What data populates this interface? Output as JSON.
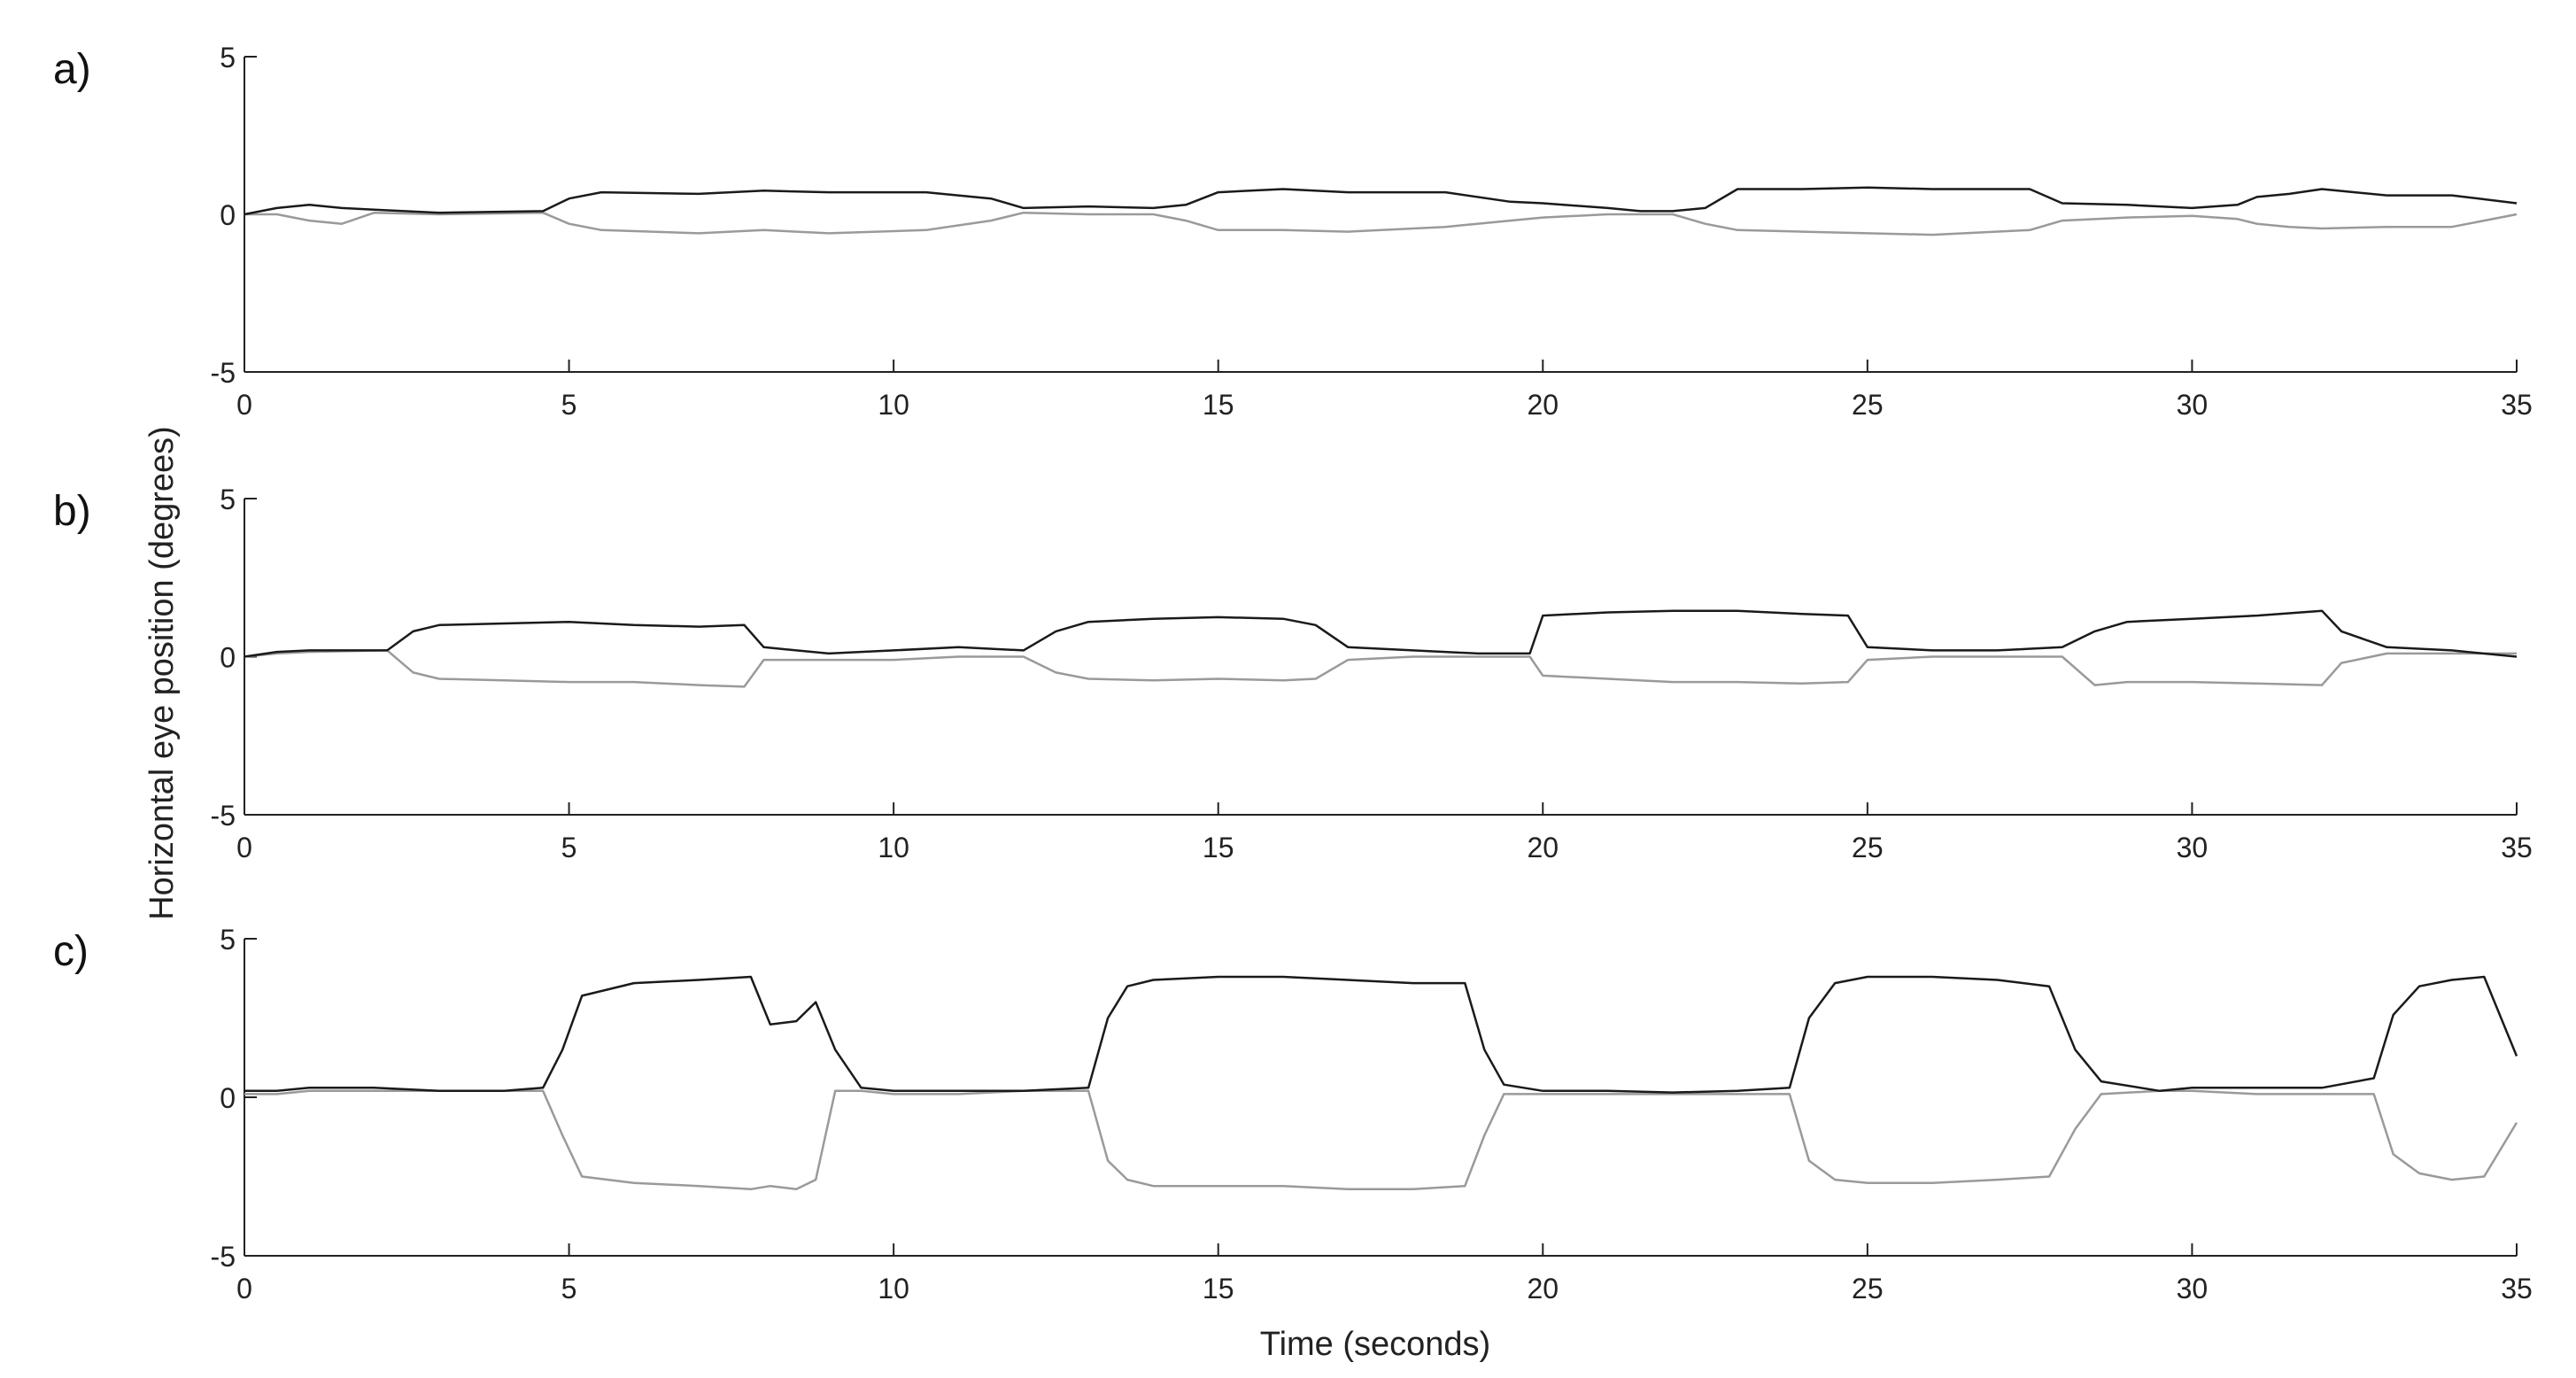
{
  "figure": {
    "ylabel": "Horizontal eye position (degrees)",
    "xlabel": "Time (seconds)"
  },
  "chart_data": [
    {
      "type": "line",
      "panel_label": "a)",
      "xlim": [
        0,
        35
      ],
      "ylim": [
        -5,
        5
      ],
      "xticks": [
        "0",
        "5",
        "10",
        "15",
        "20",
        "25",
        "30",
        "35"
      ],
      "yticks": [
        "5",
        "0",
        "-5"
      ],
      "grid": false,
      "colors": {
        "dark": "#1a1a1a",
        "light": "#9a9a9a"
      },
      "series": [
        {
          "x": [
            0,
            0.5,
            1,
            1.5,
            2,
            3,
            4.6,
            5,
            5.5,
            7,
            8,
            9,
            10.5,
            11.5,
            12,
            13,
            14,
            14.5,
            15,
            16,
            17,
            18.5,
            19.5,
            20,
            21,
            21.5,
            22,
            22.5,
            23,
            24,
            25,
            26,
            27.5,
            28,
            29,
            30,
            30.7,
            31,
            31.5,
            32,
            33,
            34,
            35
          ],
          "y": [
            0,
            0.2,
            0.3,
            0.2,
            0.15,
            0.05,
            0.1,
            0.5,
            0.7,
            0.65,
            0.75,
            0.7,
            0.7,
            0.5,
            0.2,
            0.25,
            0.2,
            0.3,
            0.7,
            0.8,
            0.7,
            0.7,
            0.4,
            0.35,
            0.2,
            0.1,
            0.1,
            0.2,
            0.8,
            0.8,
            0.85,
            0.8,
            0.8,
            0.35,
            0.3,
            0.2,
            0.3,
            0.55,
            0.65,
            0.8,
            0.6,
            0.6,
            0.35
          ]
        },
        {
          "x": [
            0,
            0.5,
            1,
            1.5,
            2,
            3,
            4.6,
            5,
            5.5,
            7,
            8,
            9,
            10.5,
            11.5,
            12,
            13,
            14,
            14.5,
            15,
            16,
            17,
            18.5,
            19.5,
            20,
            21,
            21.5,
            22,
            22.5,
            23,
            24,
            25,
            26,
            27.5,
            28,
            29,
            30,
            30.7,
            31,
            31.5,
            32,
            33,
            34,
            35
          ],
          "y": [
            0,
            0,
            -0.2,
            -0.3,
            0.05,
            0,
            0.05,
            -0.3,
            -0.5,
            -0.6,
            -0.5,
            -0.6,
            -0.5,
            -0.2,
            0.05,
            0,
            0,
            -0.2,
            -0.5,
            -0.5,
            -0.55,
            -0.4,
            -0.2,
            -0.1,
            0,
            0,
            0,
            -0.3,
            -0.5,
            -0.55,
            -0.6,
            -0.65,
            -0.5,
            -0.2,
            -0.1,
            -0.05,
            -0.15,
            -0.3,
            -0.4,
            -0.45,
            -0.4,
            -0.4,
            0
          ]
        }
      ]
    },
    {
      "type": "line",
      "panel_label": "b)",
      "xlim": [
        0,
        35
      ],
      "ylim": [
        -5,
        5
      ],
      "xticks": [
        "0",
        "5",
        "10",
        "15",
        "20",
        "25",
        "30",
        "35"
      ],
      "yticks": [
        "5",
        "0",
        "-5"
      ],
      "grid": false,
      "colors": {
        "dark": "#1a1a1a",
        "light": "#9a9a9a"
      },
      "series": [
        {
          "x": [
            0,
            0.5,
            1,
            2.2,
            2.6,
            3,
            4,
            5,
            6,
            7,
            7.7,
            8,
            9,
            10,
            11,
            12,
            12.5,
            13,
            14,
            15,
            16,
            16.5,
            17,
            18,
            19,
            19.8,
            20,
            21,
            22,
            23,
            24,
            24.7,
            25,
            26,
            27,
            28,
            28.5,
            29,
            30,
            31,
            32,
            32.3,
            33,
            34,
            35
          ],
          "y": [
            0,
            0.15,
            0.2,
            0.2,
            0.8,
            1,
            1.05,
            1.1,
            1,
            0.95,
            1,
            0.3,
            0.1,
            0.2,
            0.3,
            0.2,
            0.8,
            1.1,
            1.2,
            1.25,
            1.2,
            1.0,
            0.3,
            0.2,
            0.1,
            0.1,
            1.3,
            1.4,
            1.45,
            1.45,
            1.35,
            1.3,
            0.3,
            0.2,
            0.2,
            0.3,
            0.8,
            1.1,
            1.2,
            1.3,
            1.45,
            0.8,
            0.3,
            0.2,
            0
          ]
        },
        {
          "x": [
            0,
            0.5,
            1,
            2.2,
            2.6,
            3,
            4,
            5,
            6,
            7,
            7.7,
            8,
            9,
            10,
            11,
            12,
            12.5,
            13,
            14,
            15,
            16,
            16.5,
            17,
            18,
            19,
            19.8,
            20,
            21,
            22,
            23,
            24,
            24.7,
            25,
            26,
            27,
            28,
            28.5,
            29,
            30,
            31,
            32,
            32.3,
            33,
            34,
            35
          ],
          "y": [
            0,
            0.1,
            0.15,
            0.2,
            -0.5,
            -0.7,
            -0.75,
            -0.8,
            -0.8,
            -0.9,
            -0.95,
            -0.1,
            -0.1,
            -0.1,
            0,
            0,
            -0.5,
            -0.7,
            -0.75,
            -0.7,
            -0.75,
            -0.7,
            -0.1,
            0,
            0,
            0,
            -0.6,
            -0.7,
            -0.8,
            -0.8,
            -0.85,
            -0.8,
            -0.1,
            0,
            0,
            0,
            -0.9,
            -0.8,
            -0.8,
            -0.85,
            -0.9,
            -0.2,
            0.1,
            0.1,
            0.1
          ]
        }
      ]
    },
    {
      "type": "line",
      "panel_label": "c)",
      "xlim": [
        0,
        35
      ],
      "ylim": [
        -5,
        5
      ],
      "xticks": [
        "0",
        "5",
        "10",
        "15",
        "20",
        "25",
        "30",
        "35"
      ],
      "yticks": [
        "5",
        "0",
        "-5"
      ],
      "grid": false,
      "colors": {
        "dark": "#1a1a1a",
        "light": "#9a9a9a"
      },
      "series": [
        {
          "x": [
            0,
            0.5,
            1,
            2,
            3,
            4,
            4.6,
            4.9,
            5.2,
            6,
            7,
            7.8,
            8.1,
            8.5,
            8.8,
            9.1,
            9.5,
            10,
            11,
            12,
            13,
            13.3,
            13.6,
            14,
            15,
            16,
            17,
            18,
            18.8,
            19.1,
            19.4,
            20,
            21,
            22,
            23,
            23.8,
            24.1,
            24.5,
            25,
            26,
            27,
            27.8,
            28.2,
            28.6,
            29.5,
            30,
            31,
            32,
            32.8,
            33.1,
            33.5,
            34,
            34.5,
            35
          ],
          "y": [
            0.2,
            0.2,
            0.3,
            0.3,
            0.2,
            0.2,
            0.3,
            1.5,
            3.2,
            3.6,
            3.7,
            3.8,
            2.3,
            2.4,
            3.0,
            1.5,
            0.3,
            0.2,
            0.2,
            0.2,
            0.3,
            2.5,
            3.5,
            3.7,
            3.8,
            3.8,
            3.7,
            3.6,
            3.6,
            1.5,
            0.4,
            0.2,
            0.2,
            0.15,
            0.2,
            0.3,
            2.5,
            3.6,
            3.8,
            3.8,
            3.7,
            3.5,
            1.5,
            0.5,
            0.2,
            0.3,
            0.3,
            0.3,
            0.6,
            2.6,
            3.5,
            3.7,
            3.8,
            1.3
          ]
        },
        {
          "x": [
            0,
            0.5,
            1,
            2,
            3,
            4,
            4.6,
            4.9,
            5.2,
            6,
            7,
            7.8,
            8.1,
            8.5,
            8.8,
            9.1,
            9.5,
            10,
            11,
            12,
            13,
            13.3,
            13.6,
            14,
            15,
            16,
            17,
            18,
            18.8,
            19.1,
            19.4,
            20,
            21,
            22,
            23,
            23.8,
            24.1,
            24.5,
            25,
            26,
            27,
            27.8,
            28.2,
            28.6,
            29.5,
            30,
            31,
            32,
            32.8,
            33.1,
            33.5,
            34,
            34.5,
            35
          ],
          "y": [
            0.1,
            0.1,
            0.2,
            0.2,
            0.2,
            0.2,
            0.2,
            -1.2,
            -2.5,
            -2.7,
            -2.8,
            -2.9,
            -2.8,
            -2.9,
            -2.6,
            0.2,
            0.2,
            0.1,
            0.1,
            0.2,
            0.2,
            -2.0,
            -2.6,
            -2.8,
            -2.8,
            -2.8,
            -2.9,
            -2.9,
            -2.8,
            -1.2,
            0.1,
            0.1,
            0.1,
            0.1,
            0.1,
            0.1,
            -2.0,
            -2.6,
            -2.7,
            -2.7,
            -2.6,
            -2.5,
            -1.0,
            0.1,
            0.2,
            0.2,
            0.1,
            0.1,
            0.1,
            -1.8,
            -2.4,
            -2.6,
            -2.5,
            -0.8
          ]
        }
      ]
    }
  ]
}
